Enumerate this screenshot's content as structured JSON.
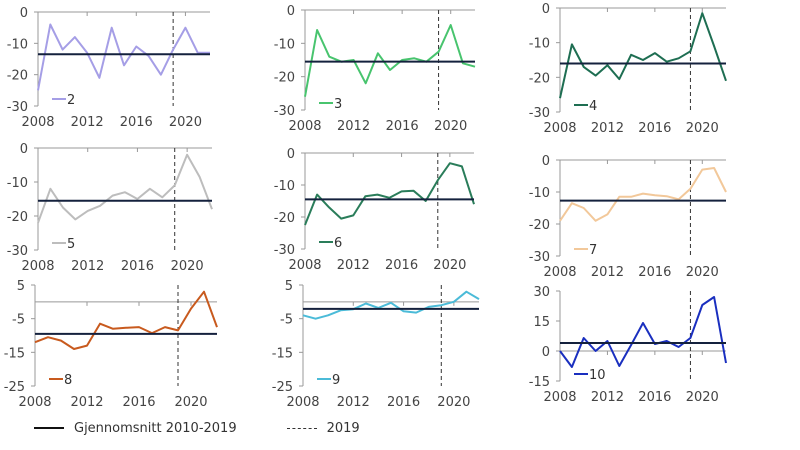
{
  "chart_data": [
    {
      "type": "line",
      "panel": "2",
      "color": "#a59ee6",
      "x": [
        2008,
        2009,
        2010,
        2011,
        2012,
        2013,
        2014,
        2015,
        2016,
        2017,
        2018,
        2019,
        2020,
        2021,
        2022
      ],
      "values": [
        -25,
        -4,
        -12,
        -8,
        -13,
        -21,
        -5,
        -17,
        -11,
        -14,
        -20,
        -12,
        -5,
        -13,
        -13
      ],
      "average": -13.5,
      "ylim": [
        -30,
        0
      ],
      "yticks": [
        0,
        -10,
        -20,
        -30
      ],
      "xticks": [
        2008,
        2012,
        2016,
        2020
      ],
      "zero_line": false
    },
    {
      "type": "line",
      "panel": "3",
      "color": "#48c46e",
      "x": [
        2008,
        2009,
        2010,
        2011,
        2012,
        2013,
        2014,
        2015,
        2016,
        2017,
        2018,
        2019,
        2020,
        2021,
        2022
      ],
      "values": [
        -26,
        -6,
        -14,
        -15.5,
        -15,
        -22,
        -13,
        -18,
        -15,
        -14.5,
        -15.5,
        -12.5,
        -4.5,
        -16,
        -17
      ],
      "average": -15.5,
      "ylim": [
        -30,
        0
      ],
      "yticks": [
        0,
        -10,
        -20,
        -30
      ],
      "xticks": [
        2008,
        2012,
        2016,
        2020
      ],
      "zero_line": false
    },
    {
      "type": "line",
      "panel": "4",
      "color": "#1e6e52",
      "x": [
        2008,
        2009,
        2010,
        2011,
        2012,
        2013,
        2014,
        2015,
        2016,
        2017,
        2018,
        2019,
        2020,
        2021,
        2022
      ],
      "values": [
        -26,
        -10.5,
        -17,
        -19.5,
        -16.5,
        -20.5,
        -13.5,
        -15,
        -13,
        -15.5,
        -14.5,
        -12.5,
        -1.5,
        -11,
        -21
      ],
      "average": -16,
      "ylim": [
        -30,
        0
      ],
      "yticks": [
        0,
        -10,
        -20,
        -30
      ],
      "xticks": [
        2008,
        2012,
        2016,
        2020
      ],
      "zero_line": false
    },
    {
      "type": "line",
      "panel": "5",
      "color": "#bdbdbd",
      "x": [
        2008,
        2009,
        2010,
        2011,
        2012,
        2013,
        2014,
        2015,
        2016,
        2017,
        2018,
        2019,
        2020,
        2021,
        2022
      ],
      "values": [
        -22,
        -12,
        -17.5,
        -21,
        -18.5,
        -17,
        -14,
        -13,
        -15,
        -12,
        -14.5,
        -11,
        -2,
        -8.5,
        -18
      ],
      "average": -15.5,
      "ylim": [
        -30,
        0
      ],
      "yticks": [
        0,
        -10,
        -20,
        -30
      ],
      "xticks": [
        2008,
        2012,
        2016,
        2020
      ],
      "zero_line": false
    },
    {
      "type": "line",
      "panel": "6",
      "color": "#2a7d5a",
      "x": [
        2008,
        2009,
        2010,
        2011,
        2012,
        2013,
        2014,
        2015,
        2016,
        2017,
        2018,
        2019,
        2020,
        2021,
        2022
      ],
      "values": [
        -22.5,
        -13,
        -17,
        -20.5,
        -19.5,
        -13.5,
        -13,
        -14,
        -12,
        -11.8,
        -15,
        -8.5,
        -3.2,
        -4.2,
        -16
      ],
      "average": -14.5,
      "ylim": [
        -30,
        0
      ],
      "yticks": [
        0,
        -10,
        -20,
        -30
      ],
      "xticks": [
        2008,
        2012,
        2016,
        2020
      ],
      "zero_line": false
    },
    {
      "type": "line",
      "panel": "7",
      "color": "#f2c89a",
      "x": [
        2008,
        2009,
        2010,
        2011,
        2012,
        2013,
        2014,
        2015,
        2016,
        2017,
        2018,
        2019,
        2020,
        2021,
        2022
      ],
      "values": [
        -19,
        -13.5,
        -15,
        -19,
        -17,
        -11.5,
        -11.5,
        -10.5,
        -11,
        -11.3,
        -12.3,
        -9,
        -3,
        -2.5,
        -10
      ],
      "average": -12.7,
      "ylim": [
        -30,
        0
      ],
      "yticks": [
        0,
        -10,
        -20,
        -30
      ],
      "xticks": [
        2008,
        2012,
        2016,
        2020
      ],
      "zero_line": false
    },
    {
      "type": "line",
      "panel": "8",
      "color": "#c85a1e",
      "x": [
        2008,
        2009,
        2010,
        2011,
        2012,
        2013,
        2014,
        2015,
        2016,
        2017,
        2018,
        2019,
        2020,
        2021,
        2022
      ],
      "values": [
        -12,
        -10.5,
        -11.5,
        -14,
        -13,
        -6.5,
        -8,
        -7.7,
        -7.5,
        -9.3,
        -7.5,
        -8.5,
        -2,
        3,
        -7.5
      ],
      "average": -9.5,
      "ylim": [
        -25,
        5
      ],
      "yticks": [
        5,
        -5,
        -15,
        -25
      ],
      "xticks": [
        2008,
        2012,
        2016,
        2020
      ],
      "zero_line": true
    },
    {
      "type": "line",
      "panel": "9",
      "color": "#4bbbd8",
      "x": [
        2008,
        2009,
        2010,
        2011,
        2012,
        2013,
        2014,
        2015,
        2016,
        2017,
        2018,
        2019,
        2020,
        2021,
        2022
      ],
      "values": [
        -4,
        -5,
        -4,
        -2.5,
        -2.2,
        -0.5,
        -1.8,
        -0.3,
        -2.8,
        -3.2,
        -1.5,
        -1,
        0,
        3,
        0.8
      ],
      "average": -2.1,
      "ylim": [
        -25,
        5
      ],
      "yticks": [
        5,
        -5,
        -15,
        -25
      ],
      "xticks": [
        2008,
        2012,
        2016,
        2020
      ],
      "zero_line": true
    },
    {
      "type": "line",
      "panel": "10",
      "color": "#1a2fbf",
      "x": [
        2008,
        2009,
        2010,
        2011,
        2012,
        2013,
        2014,
        2015,
        2016,
        2017,
        2018,
        2019,
        2020,
        2021,
        2022
      ],
      "values": [
        0,
        -8,
        6.5,
        0,
        5,
        -7.5,
        3,
        14,
        3.5,
        5,
        2,
        6.5,
        23,
        27,
        -6
      ],
      "average": 4,
      "ylim": [
        -15,
        30
      ],
      "yticks": [
        30,
        15,
        0,
        -15
      ],
      "xticks": [
        2008,
        2012,
        2016,
        2020
      ],
      "zero_line": true
    }
  ],
  "reference_year": 2019,
  "legend": {
    "average_label": "Gjennomsnitt 2010-2019",
    "reference_label": "2019"
  }
}
